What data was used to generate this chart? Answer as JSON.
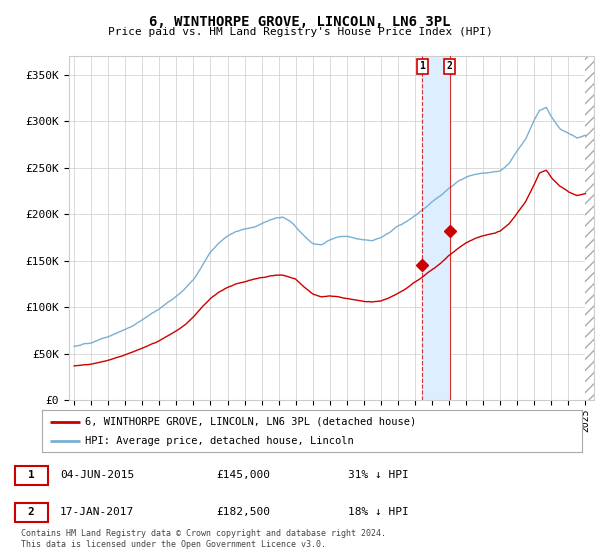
{
  "title": "6, WINTHORPE GROVE, LINCOLN, LN6 3PL",
  "subtitle": "Price paid vs. HM Land Registry's House Price Index (HPI)",
  "ylabel_ticks": [
    "£0",
    "£50K",
    "£100K",
    "£150K",
    "£200K",
    "£250K",
    "£300K",
    "£350K"
  ],
  "ytick_values": [
    0,
    50000,
    100000,
    150000,
    200000,
    250000,
    300000,
    350000
  ],
  "ylim": [
    0,
    370000
  ],
  "xlim_start": 1994.7,
  "xlim_end": 2025.5,
  "transaction1_date": 2015.42,
  "transaction1_price": 145000,
  "transaction2_date": 2017.04,
  "transaction2_price": 182500,
  "legend_property": "6, WINTHORPE GROVE, LINCOLN, LN6 3PL (detached house)",
  "legend_hpi": "HPI: Average price, detached house, Lincoln",
  "copyright": "Contains HM Land Registry data © Crown copyright and database right 2024.\nThis data is licensed under the Open Government Licence v3.0.",
  "hpi_color": "#7ab0d4",
  "property_color": "#cc0000",
  "shaded_color": "#ddeeff",
  "vline1_color": "#cc0000",
  "vline2_color": "#cc0000",
  "grid_color": "#cccccc",
  "background_color": "#ffffff",
  "hatch_start": 2025.0,
  "hpi_years": [
    1995,
    1995.5,
    1996,
    1996.5,
    1997,
    1997.5,
    1998,
    1998.5,
    1999,
    1999.5,
    2000,
    2000.5,
    2001,
    2001.5,
    2002,
    2002.5,
    2003,
    2003.5,
    2004,
    2004.5,
    2005,
    2005.5,
    2006,
    2006.5,
    2007,
    2007.2,
    2007.5,
    2007.8,
    2008,
    2008.5,
    2009,
    2009.5,
    2010,
    2010.5,
    2011,
    2011.5,
    2012,
    2012.5,
    2013,
    2013.5,
    2014,
    2014.5,
    2015,
    2015.5,
    2016,
    2016.5,
    2017,
    2017.5,
    2018,
    2018.5,
    2019,
    2019.5,
    2020,
    2020.5,
    2021,
    2021.5,
    2022,
    2022.3,
    2022.7,
    2023,
    2023.5,
    2024,
    2024.5,
    2025
  ],
  "hpi_values": [
    58000,
    60000,
    62000,
    65000,
    68000,
    72000,
    76000,
    80000,
    86000,
    92000,
    98000,
    105000,
    112000,
    120000,
    130000,
    145000,
    160000,
    170000,
    178000,
    183000,
    186000,
    188000,
    192000,
    196000,
    198000,
    198500,
    196000,
    192000,
    188000,
    178000,
    170000,
    168000,
    173000,
    176000,
    177000,
    175000,
    173000,
    172000,
    175000,
    180000,
    187000,
    193000,
    200000,
    207000,
    215000,
    222000,
    230000,
    237000,
    242000,
    245000,
    247000,
    248000,
    250000,
    258000,
    272000,
    285000,
    305000,
    315000,
    318000,
    308000,
    295000,
    290000,
    285000,
    288000
  ],
  "prop_years": [
    1995,
    1995.5,
    1996,
    1996.5,
    1997,
    1997.5,
    1998,
    1998.5,
    1999,
    1999.5,
    2000,
    2000.5,
    2001,
    2001.5,
    2002,
    2002.5,
    2003,
    2003.5,
    2004,
    2004.5,
    2005,
    2005.2,
    2005.5,
    2005.8,
    2006,
    2006.3,
    2006.6,
    2007,
    2007.3,
    2007.6,
    2008,
    2008.5,
    2009,
    2009.5,
    2010,
    2010.5,
    2011,
    2011.3,
    2011.6,
    2012,
    2012.5,
    2013,
    2013.5,
    2014,
    2014.5,
    2015,
    2015.5,
    2016,
    2016.5,
    2017,
    2017.5,
    2018,
    2018.5,
    2019,
    2019.5,
    2020,
    2020.5,
    2021,
    2021.5,
    2022,
    2022.3,
    2022.7,
    2023,
    2023.5,
    2024,
    2024.5,
    2025
  ],
  "prop_values": [
    37000,
    38000,
    39000,
    41000,
    43000,
    46000,
    49000,
    52000,
    56000,
    60000,
    64000,
    69000,
    74000,
    80000,
    88000,
    98000,
    108000,
    115000,
    120000,
    124000,
    126000,
    127000,
    128500,
    130000,
    131000,
    132000,
    133000,
    134000,
    133500,
    132000,
    130000,
    122000,
    115000,
    112000,
    113000,
    112000,
    110000,
    109000,
    108500,
    107000,
    106000,
    107000,
    110000,
    115000,
    120000,
    127000,
    133000,
    140000,
    147000,
    155000,
    162000,
    168000,
    172000,
    175000,
    177000,
    180000,
    188000,
    200000,
    212000,
    230000,
    242000,
    245000,
    237000,
    228000,
    222000,
    218000,
    220000
  ]
}
